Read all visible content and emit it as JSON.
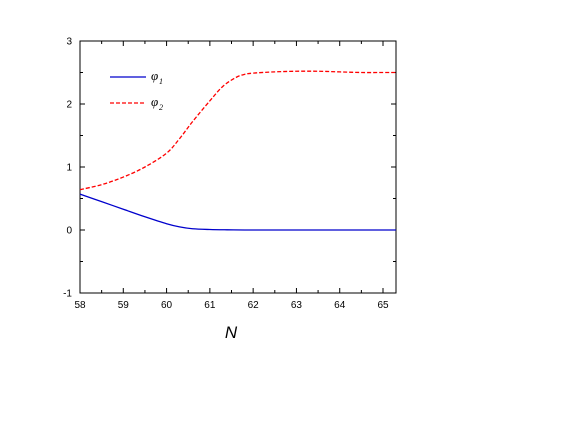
{
  "chart_data": {
    "type": "line",
    "xlabel": "N",
    "ylabel": "",
    "xlim": [
      58,
      65.3
    ],
    "ylim": [
      -1,
      3
    ],
    "xticks": [
      58,
      59,
      60,
      61,
      62,
      63,
      64,
      65
    ],
    "yticks": [
      -1,
      0,
      1,
      2,
      3
    ],
    "legend_position": "top-left",
    "series": [
      {
        "name": "φ1",
        "symbol": "φ",
        "subscript": "1",
        "color": "#0000cc",
        "dash": "solid",
        "x": [
          58.0,
          58.5,
          59.0,
          59.5,
          60.0,
          60.3,
          60.6,
          61.0,
          61.4,
          61.8,
          62.0,
          63.0,
          64.0,
          65.0,
          65.3
        ],
        "y": [
          0.57,
          0.45,
          0.33,
          0.21,
          0.1,
          0.05,
          0.02,
          0.008,
          0.003,
          0.0,
          0.0,
          0.0,
          0.0,
          0.0,
          0.0
        ]
      },
      {
        "name": "φ2",
        "symbol": "φ",
        "subscript": "2",
        "color": "#ff0000",
        "dash": "dashed",
        "x": [
          58.0,
          58.5,
          59.0,
          59.5,
          60.0,
          60.3,
          60.6,
          61.0,
          61.3,
          61.6,
          61.8,
          62.0,
          62.5,
          63.0,
          63.5,
          64.0,
          64.5,
          65.0,
          65.3
        ],
        "y": [
          0.64,
          0.72,
          0.84,
          1.0,
          1.22,
          1.45,
          1.72,
          2.05,
          2.28,
          2.42,
          2.47,
          2.49,
          2.51,
          2.52,
          2.52,
          2.51,
          2.5,
          2.5,
          2.5
        ]
      }
    ]
  }
}
